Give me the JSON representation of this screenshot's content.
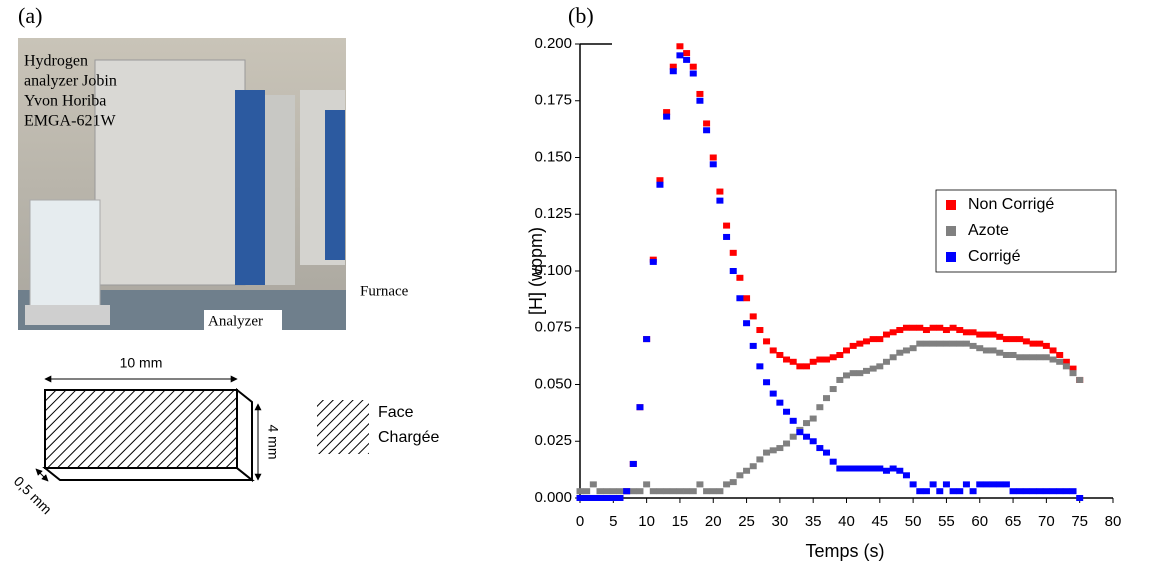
{
  "chart_data": {
    "type": "scatter",
    "x_label": "Temps (s)",
    "y_label": "[H] (wppm)",
    "x": [
      0,
      1,
      2,
      3,
      4,
      5,
      6,
      7,
      8,
      9,
      10,
      11,
      12,
      13,
      14,
      15,
      16,
      17,
      18,
      19,
      20,
      21,
      22,
      23,
      24,
      25,
      26,
      27,
      28,
      29,
      30,
      31,
      32,
      33,
      34,
      35,
      36,
      37,
      38,
      39,
      40,
      41,
      42,
      43,
      44,
      45,
      46,
      47,
      48,
      49,
      50,
      51,
      52,
      53,
      54,
      55,
      56,
      57,
      58,
      59,
      60,
      61,
      62,
      63,
      64,
      65,
      66,
      67,
      68,
      69,
      70,
      71,
      72,
      73,
      74,
      75
    ],
    "series": [
      {
        "name": "Non Corrigé",
        "color": "#ff0000",
        "values": [
          0,
          0,
          0,
          0,
          0,
          0,
          0,
          0.003,
          0.015,
          0.04,
          0.07,
          0.105,
          0.14,
          0.17,
          0.19,
          0.199,
          0.196,
          0.19,
          0.178,
          0.165,
          0.15,
          0.135,
          0.12,
          0.108,
          0.097,
          0.088,
          0.08,
          0.074,
          0.069,
          0.065,
          0.063,
          0.061,
          0.06,
          0.058,
          0.058,
          0.06,
          0.061,
          0.061,
          0.062,
          0.063,
          0.065,
          0.067,
          0.068,
          0.069,
          0.07,
          0.07,
          0.072,
          0.073,
          0.074,
          0.075,
          0.075,
          0.075,
          0.074,
          0.075,
          0.075,
          0.074,
          0.075,
          0.074,
          0.073,
          0.073,
          0.072,
          0.072,
          0.072,
          0.071,
          0.07,
          0.07,
          0.07,
          0.069,
          0.068,
          0.068,
          0.067,
          0.065,
          0.063,
          0.06,
          0.057,
          0.052
        ]
      },
      {
        "name": "Azote",
        "color": "#808080",
        "values": [
          0.003,
          0.003,
          0.006,
          0.003,
          0.003,
          0.003,
          0.003,
          0.003,
          0.003,
          0.003,
          0.006,
          0.003,
          0.003,
          0.003,
          0.003,
          0.003,
          0.003,
          0.003,
          0.006,
          0.003,
          0.003,
          0.003,
          0.006,
          0.007,
          0.01,
          0.012,
          0.014,
          0.017,
          0.02,
          0.021,
          0.022,
          0.024,
          0.027,
          0.03,
          0.033,
          0.035,
          0.04,
          0.044,
          0.048,
          0.052,
          0.054,
          0.055,
          0.055,
          0.056,
          0.057,
          0.058,
          0.06,
          0.062,
          0.064,
          0.065,
          0.066,
          0.068,
          0.068,
          0.068,
          0.068,
          0.068,
          0.068,
          0.068,
          0.068,
          0.067,
          0.066,
          0.065,
          0.065,
          0.064,
          0.063,
          0.063,
          0.062,
          0.062,
          0.062,
          0.062,
          0.062,
          0.061,
          0.06,
          0.058,
          0.055,
          0.052
        ]
      },
      {
        "name": "Corrigé",
        "color": "#0000ff",
        "values": [
          0,
          0,
          0,
          0,
          0,
          0,
          0,
          0.003,
          0.015,
          0.04,
          0.07,
          0.104,
          0.138,
          0.168,
          0.188,
          0.195,
          0.193,
          0.187,
          0.175,
          0.162,
          0.147,
          0.131,
          0.115,
          0.1,
          0.088,
          0.077,
          0.067,
          0.058,
          0.051,
          0.046,
          0.042,
          0.038,
          0.034,
          0.029,
          0.027,
          0.025,
          0.022,
          0.02,
          0.016,
          0.013,
          0.013,
          0.013,
          0.013,
          0.013,
          0.013,
          0.013,
          0.012,
          0.013,
          0.012,
          0.01,
          0.006,
          0.003,
          0.003,
          0.006,
          0.003,
          0.006,
          0.003,
          0.003,
          0.006,
          0.003,
          0.006,
          0.006,
          0.006,
          0.006,
          0.006,
          0.003,
          0.003,
          0.003,
          0.003,
          0.003,
          0.003,
          0.003,
          0.003,
          0.003,
          0.003,
          0
        ]
      }
    ],
    "xlim": [
      0,
      80
    ],
    "xticks": [
      0,
      5,
      10,
      15,
      20,
      25,
      30,
      35,
      40,
      45,
      50,
      55,
      60,
      65,
      70,
      75,
      80
    ],
    "ylim": [
      0,
      0.2
    ],
    "yticks": [
      {
        "value": 0,
        "label": "0.000"
      },
      {
        "value": 0.025,
        "label": "0.025"
      },
      {
        "value": 0.05,
        "label": "0.050"
      },
      {
        "value": 0.075,
        "label": "0.075"
      },
      {
        "value": 0.1,
        "label": "0.100"
      },
      {
        "value": 0.125,
        "label": "0.125"
      },
      {
        "value": 0.15,
        "label": "0.150"
      },
      {
        "value": 0.175,
        "label": "0.175"
      },
      {
        "value": 0.2,
        "label": "0.200"
      }
    ],
    "legend": "right",
    "grid": false
  },
  "figure": {
    "panel_a": "(a)",
    "panel_b": "(b)",
    "photo_caption": [
      "Hydrogen",
      "analyzer Jobin",
      "Yvon Horiba",
      "EMGA-621W"
    ],
    "photo_labels": [
      "Analyzer",
      "Furnace"
    ],
    "dimensions": [
      "10 mm",
      "4 mm",
      "0,5 mm"
    ],
    "hatch_legend": [
      "Face",
      "Chargée"
    ]
  }
}
